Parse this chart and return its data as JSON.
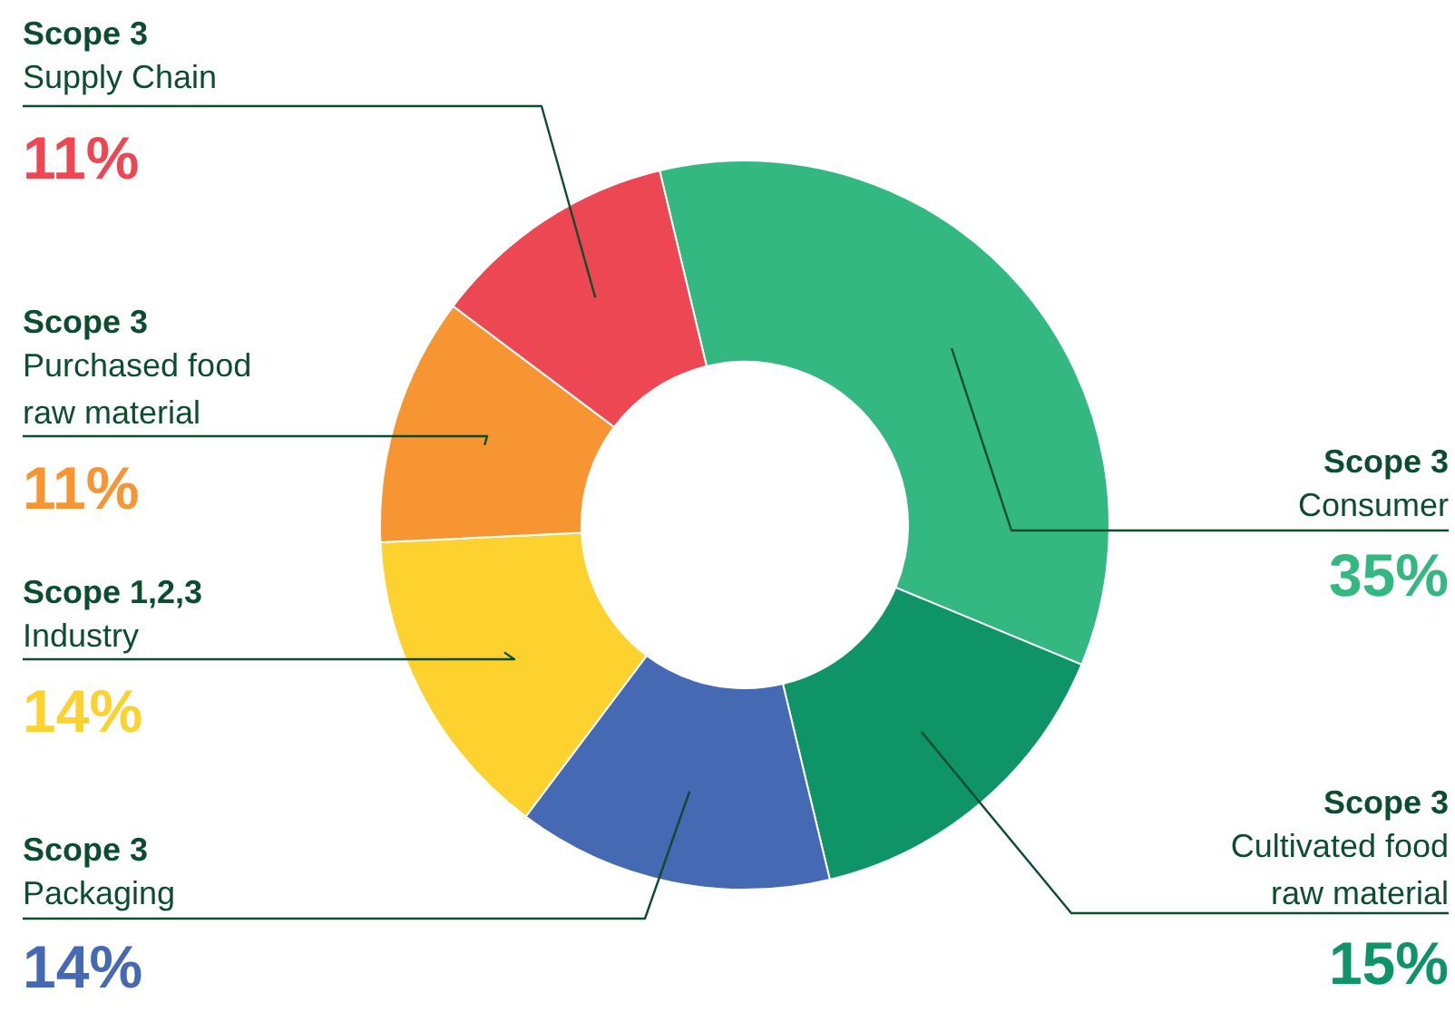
{
  "chart_data": {
    "type": "donut",
    "categories": [
      "Scope 3\nConsumer",
      "Scope 3\nCultivated food\nraw material",
      "Scope 3\nPackaging",
      "Scope 1,2,3\nIndustry",
      "Scope 3\nPurchased food\nraw material",
      "Scope 3\nSupply Chain"
    ],
    "values": [
      35,
      15,
      14,
      14,
      11,
      11
    ],
    "value_labels": [
      "35%",
      "15%",
      "14%",
      "14%",
      "11%",
      "11%"
    ],
    "colors": [
      "#34b882",
      "#0e9467",
      "#4569b2",
      "#fdd22e",
      "#f69532",
      "#ee4754"
    ]
  }
}
